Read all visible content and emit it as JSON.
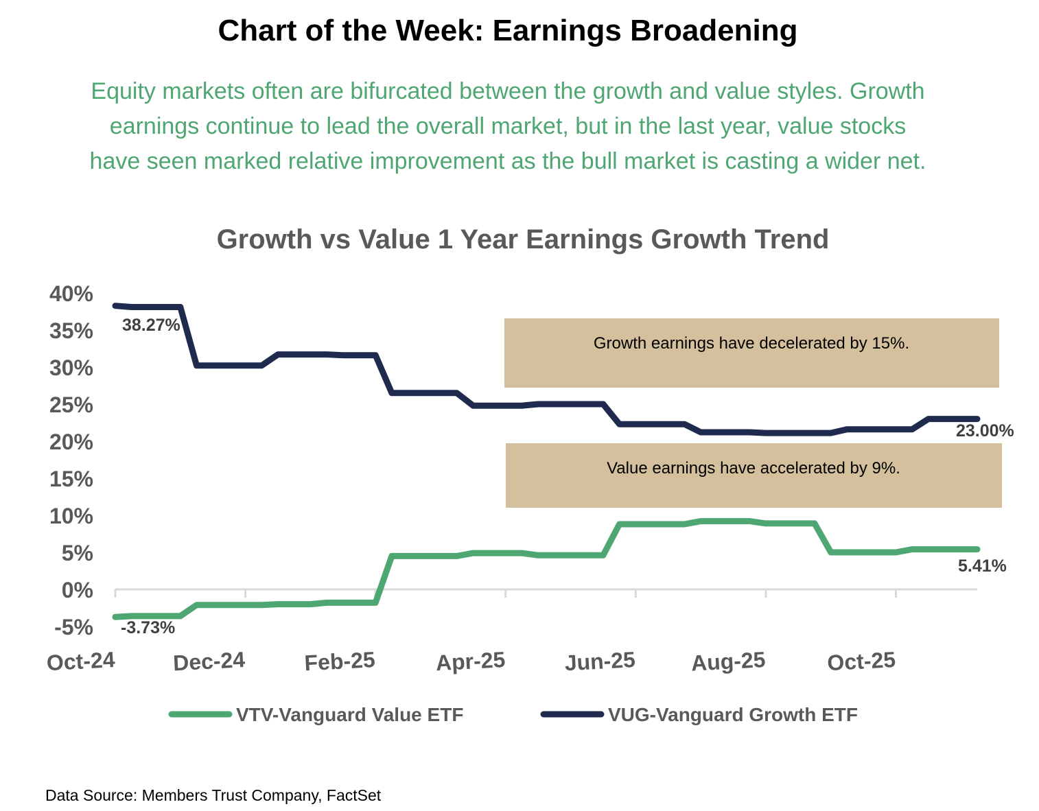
{
  "header": {
    "title": "Chart of the Week: Earnings Broadening",
    "subtitle_lines": [
      "Equity markets often are bifurcated between the growth and value styles. Growth",
      "earnings continue to lead the overall market, but in the last year, value stocks",
      "have seen marked relative improvement as the bull market is casting a wider net."
    ],
    "subtitle_color": "#4ea672"
  },
  "footer": {
    "source": "Data Source: Members Trust Company, FactSet"
  },
  "chart_data": {
    "type": "line",
    "title": "Growth vs Value 1 Year Earnings Growth Trend",
    "xlabel": "",
    "ylabel": "",
    "ylim": [
      -5,
      40
    ],
    "y_ticks": [
      40,
      35,
      30,
      25,
      20,
      15,
      10,
      5,
      0,
      -5
    ],
    "y_tick_labels": [
      "40%",
      "35%",
      "30%",
      "25%",
      "20%",
      "15%",
      "10%",
      "5%",
      "0%",
      "-5%"
    ],
    "x_tick_labels": [
      "Oct-24",
      "Dec-24",
      "Feb-25",
      "Apr-25",
      "Jun-25",
      "Aug-25",
      "Oct-25"
    ],
    "weeks_per_x_tick": 8,
    "grid": false,
    "legend_position": "bottom",
    "series": [
      {
        "name": "VTV-Vanguard Value ETF",
        "color": "#4ea672",
        "end_label": "5.41%",
        "start_label": "-3.73%",
        "values": [
          -3.73,
          -3.6,
          -3.6,
          -3.6,
          -3.6,
          -2.1,
          -2.1,
          -2.1,
          -2.1,
          -2.1,
          -2.0,
          -2.0,
          -2.0,
          -1.8,
          -1.8,
          -1.8,
          -1.8,
          4.5,
          4.5,
          4.5,
          4.5,
          4.5,
          4.9,
          4.9,
          4.9,
          4.9,
          4.6,
          4.6,
          4.6,
          4.6,
          4.6,
          8.8,
          8.8,
          8.8,
          8.8,
          8.8,
          9.2,
          9.2,
          9.2,
          9.2,
          8.9,
          8.9,
          8.9,
          8.9,
          5.0,
          5.0,
          5.0,
          5.0,
          5.0,
          5.41,
          5.41,
          5.41,
          5.41,
          5.41
        ]
      },
      {
        "name": "VUG-Vanguard Growth ETF",
        "color": "#1f2a4f",
        "end_label": "23.00%",
        "start_label": "38.27%",
        "values": [
          38.27,
          38.1,
          38.1,
          38.1,
          38.1,
          30.2,
          30.2,
          30.2,
          30.2,
          30.2,
          31.7,
          31.7,
          31.7,
          31.7,
          31.6,
          31.6,
          31.6,
          26.5,
          26.5,
          26.5,
          26.5,
          26.5,
          24.8,
          24.8,
          24.8,
          24.8,
          25.0,
          25.0,
          25.0,
          25.0,
          25.0,
          22.3,
          22.3,
          22.3,
          22.3,
          22.3,
          21.2,
          21.2,
          21.2,
          21.2,
          21.1,
          21.1,
          21.1,
          21.1,
          21.1,
          21.6,
          21.6,
          21.6,
          21.6,
          21.6,
          23.0,
          23.0,
          23.0,
          23.0
        ]
      }
    ],
    "annotations": [
      {
        "text": "Growth earnings have decelerated by 15%.",
        "fill": "#d4c09c"
      },
      {
        "text": "Value earnings have accelerated by 9%.",
        "fill": "#d4c09c"
      }
    ]
  }
}
